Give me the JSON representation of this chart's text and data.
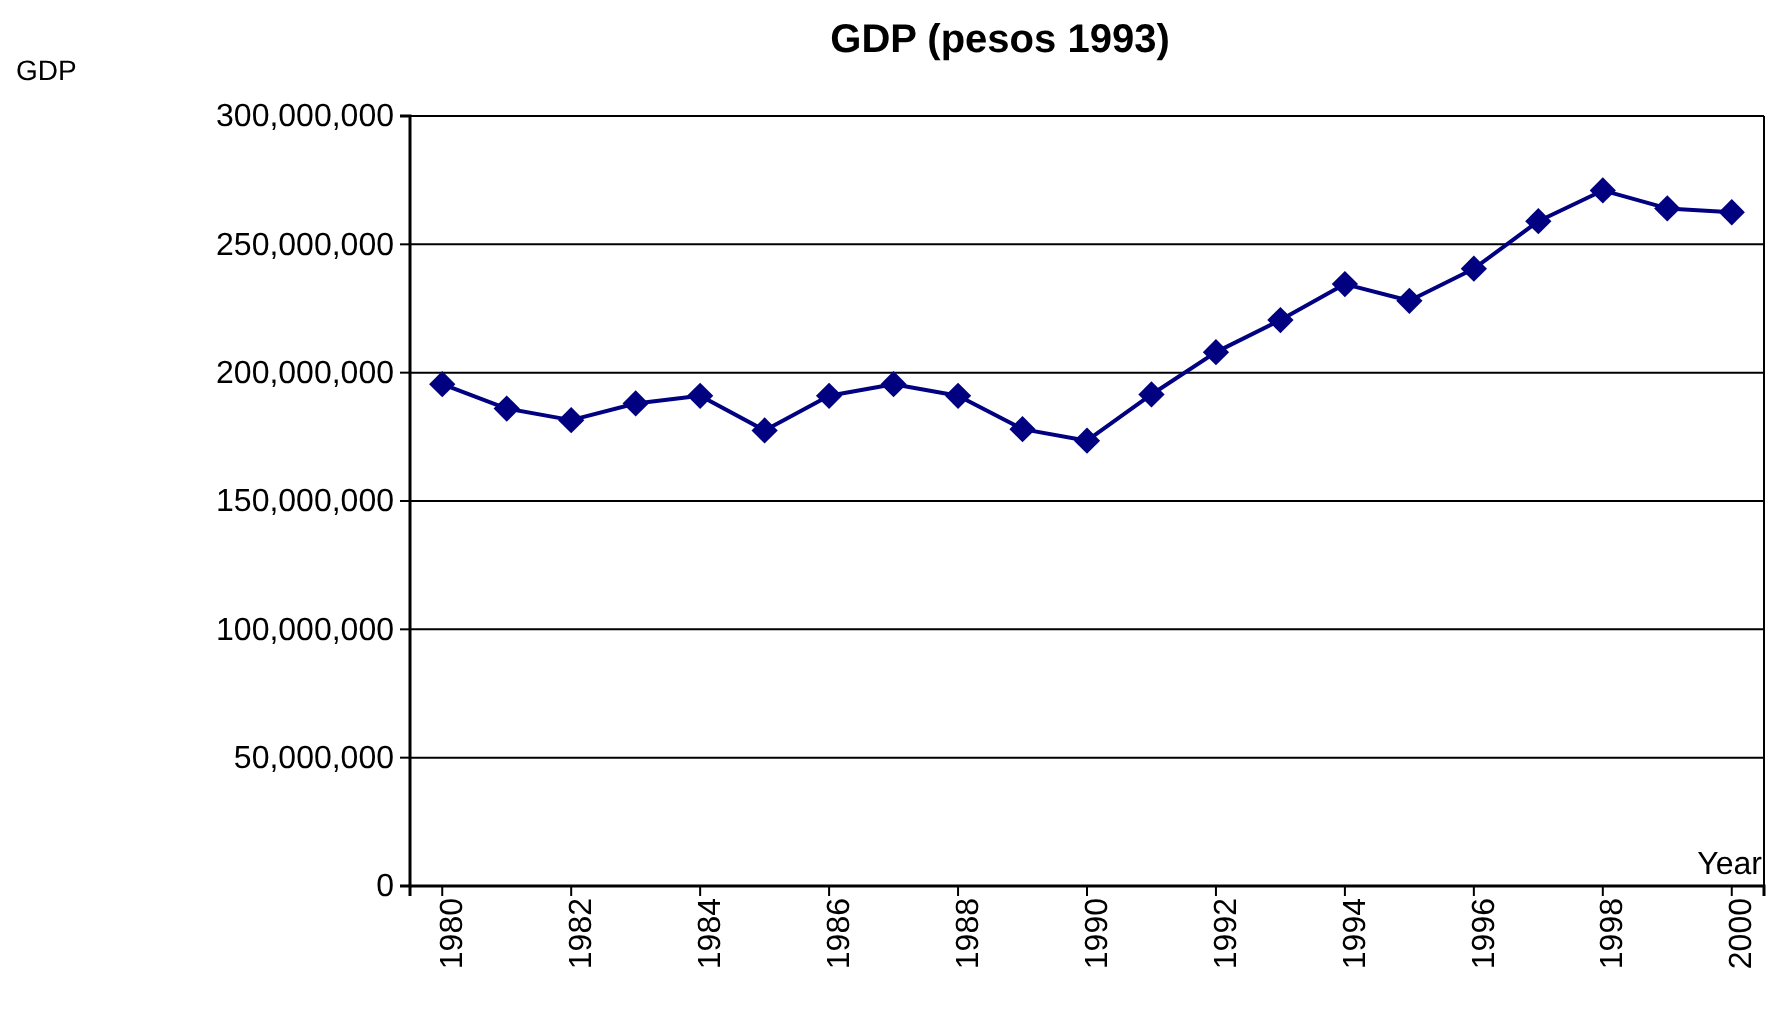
{
  "chart_data": {
    "type": "line",
    "title": "GDP (pesos 1993)",
    "xlabel": "Year",
    "annotations": [
      "GDP"
    ],
    "x": [
      1980,
      1981,
      1982,
      1983,
      1984,
      1985,
      1986,
      1987,
      1988,
      1989,
      1990,
      1991,
      1992,
      1993,
      1994,
      1995,
      1996,
      1997,
      1998,
      1999,
      2000
    ],
    "series": [
      {
        "color": "#000080",
        "values": [
          195500000,
          186000000,
          181500000,
          188000000,
          191000000,
          177500000,
          191000000,
          195500000,
          191000000,
          178000000,
          173500000,
          191500000,
          208000000,
          220500000,
          234500000,
          228000000,
          240500000,
          259000000,
          271000000,
          264000000,
          262500000
        ]
      }
    ],
    "xlim": [
      1979.5,
      2000.5
    ],
    "xticks": [
      1980,
      1982,
      1984,
      1986,
      1988,
      1990,
      1992,
      1994,
      1996,
      1998,
      2000
    ],
    "ylim": [
      0,
      300000000
    ],
    "yticks": [
      {
        "value": 0,
        "label": "0"
      },
      {
        "value": 50000000,
        "label": "50,000,000"
      },
      {
        "value": 100000000,
        "label": "100,000,000"
      },
      {
        "value": 150000000,
        "label": "150,000,000"
      },
      {
        "value": 200000000,
        "label": "200,000,000"
      },
      {
        "value": 250000000,
        "label": "250,000,000"
      },
      {
        "value": 300000000,
        "label": "300,000,000"
      }
    ],
    "grid": "y",
    "marker": "diamond",
    "line_style": "solid"
  }
}
